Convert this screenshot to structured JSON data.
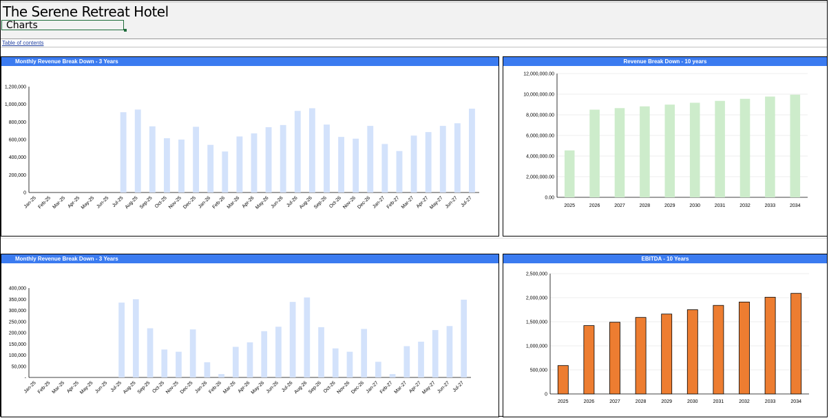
{
  "header": {
    "app_title": "The Serene Retreat Hotel",
    "sheet_name": "Charts",
    "toc_link": "Table of contents"
  },
  "chart_data": [
    {
      "id": "monthly-revenue-top",
      "type": "bar",
      "title": "Monthly Revenue Break Down - 3 Years",
      "bar_color": "#d3e2fb",
      "categories": [
        "Jan-25",
        "Feb-25",
        "Mar-25",
        "Apr-25",
        "May-25",
        "Jun-25",
        "Jul-25",
        "Aug-25",
        "Sep-25",
        "Oct-25",
        "Nov-25",
        "Dec-25",
        "Jan-26",
        "Feb-26",
        "Mar-26",
        "Apr-26",
        "May-26",
        "Jun-26",
        "Jul-26",
        "Aug-26",
        "Sep-26",
        "Oct-26",
        "Nov-26",
        "Dec-26",
        "Jan-27",
        "Feb-27",
        "Mar-27",
        "Apr-27",
        "May-27",
        "Jun-27",
        "Jul-27"
      ],
      "values": [
        0,
        0,
        0,
        0,
        0,
        0,
        910000,
        940000,
        750000,
        615000,
        600000,
        745000,
        540000,
        465000,
        635000,
        670000,
        740000,
        765000,
        925000,
        955000,
        770000,
        630000,
        610000,
        755000,
        550000,
        470000,
        645000,
        685000,
        755000,
        785000,
        950000
      ],
      "ylim": [
        0,
        1200000
      ],
      "yticks": [
        0,
        200000,
        400000,
        600000,
        800000,
        1000000,
        1200000
      ],
      "ytick_labels": [
        "0",
        "200,000",
        "400,000",
        "600,000",
        "800,000",
        "1,000,000",
        "1,200,000"
      ],
      "xlabel": "",
      "ylabel": "",
      "grid": false
    },
    {
      "id": "revenue-10-years",
      "type": "bar",
      "title": "Revenue Break Down - 10 years",
      "bar_color": "#cdeccb",
      "categories": [
        "2025",
        "2026",
        "2027",
        "2028",
        "2029",
        "2030",
        "2031",
        "2032",
        "2033",
        "2034"
      ],
      "values": [
        4550000,
        8500000,
        8650000,
        8820000,
        8990000,
        9170000,
        9350000,
        9550000,
        9770000,
        9950000
      ],
      "ylim": [
        0,
        12000000
      ],
      "yticks": [
        0,
        2000000,
        4000000,
        6000000,
        8000000,
        10000000,
        12000000
      ],
      "ytick_labels": [
        "0.00",
        "2,000,000.00",
        "4,000,000.00",
        "6,000,000.00",
        "8,000,000.00",
        "10,000,000.00",
        "12,000,000.00"
      ],
      "xlabel": "",
      "ylabel": "",
      "grid": true
    },
    {
      "id": "monthly-revenue-bottom",
      "type": "bar",
      "title": "Monthly Revenue Break Down - 3 Years",
      "bar_color": "#d3e2fb",
      "categories": [
        "Jan-25",
        "Feb-25",
        "Mar-25",
        "Apr-25",
        "May-25",
        "Jun-25",
        "Jul-25",
        "Aug-25",
        "Sep-25",
        "Oct-25",
        "Nov-25",
        "Dec-25",
        "Jan-26",
        "Feb-26",
        "Mar-26",
        "Apr-26",
        "May-26",
        "Jun-26",
        "Jul-26",
        "Aug-26",
        "Sep-26",
        "Oct-26",
        "Nov-26",
        "Dec-26",
        "Jan-27",
        "Feb-27",
        "Mar-27",
        "Apr-27",
        "May-27",
        "Jun-27",
        "Jul-27"
      ],
      "values": [
        0,
        0,
        0,
        0,
        0,
        0,
        335000,
        350000,
        220000,
        125000,
        115000,
        215000,
        68000,
        15000,
        137000,
        157000,
        207000,
        227000,
        338000,
        358000,
        225000,
        130000,
        115000,
        217000,
        70000,
        15000,
        140000,
        160000,
        212000,
        230000,
        348000
      ],
      "ylim": [
        0,
        400000
      ],
      "yticks": [
        0,
        50000,
        100000,
        150000,
        200000,
        250000,
        300000,
        350000,
        400000
      ],
      "ytick_labels": [
        "-",
        "50,000",
        "100,000",
        "150,000",
        "200,000",
        "250,000",
        "300,000",
        "350,000",
        "400,000"
      ],
      "xlabel": "",
      "ylabel": "",
      "grid": false
    },
    {
      "id": "ebitda-10-years",
      "type": "bar",
      "title": "EBITDA - 10 Years",
      "bar_color": "#ed7d31",
      "bar_stroke": "#000000",
      "categories": [
        "2025",
        "2026",
        "2027",
        "2028",
        "2029",
        "2030",
        "2031",
        "2032",
        "2033",
        "2034"
      ],
      "values": [
        590000,
        1420000,
        1490000,
        1590000,
        1660000,
        1750000,
        1840000,
        1910000,
        2010000,
        2090000
      ],
      "ylim": [
        0,
        2500000
      ],
      "yticks": [
        0,
        500000,
        1000000,
        1500000,
        2000000,
        2500000
      ],
      "ytick_labels": [
        "0",
        "500,000",
        "1,000,000",
        "1,500,000",
        "2,000,000",
        "2,500,000"
      ],
      "xlabel": "",
      "ylabel": "",
      "grid": true
    }
  ]
}
